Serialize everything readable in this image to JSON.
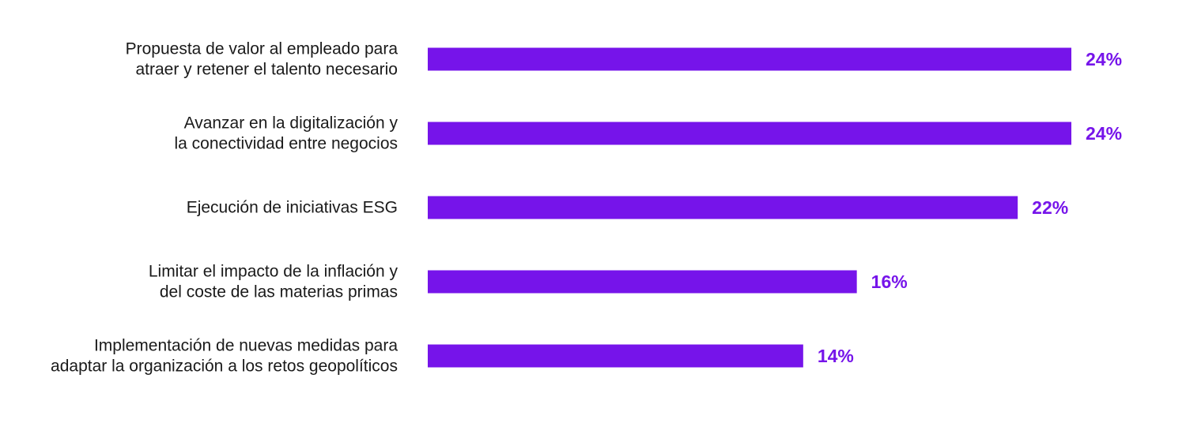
{
  "chart_data": {
    "type": "bar",
    "orientation": "horizontal",
    "categories": [
      [
        "Propuesta de valor al empleado para",
        "atraer y retener el talento necesario"
      ],
      [
        "Avanzar en la digitalización y",
        "la conectividad entre negocios"
      ],
      [
        "Ejecución de iniciativas ESG"
      ],
      [
        "Limitar el impacto de la inflación y",
        "del coste de las materias primas"
      ],
      [
        "Implementación de nuevas medidas para",
        "adaptar la organización a los retos geopolíticos"
      ]
    ],
    "values": [
      24,
      24,
      22,
      16,
      14
    ],
    "value_labels": [
      "24%",
      "24%",
      "22%",
      "16%",
      "14%"
    ],
    "unit": "%",
    "xlim": [
      0,
      24
    ],
    "grid": false,
    "legend": "none",
    "bar_color": "#7614EA",
    "label_color": "#7614EA",
    "text_color": "#1a1a1a"
  }
}
